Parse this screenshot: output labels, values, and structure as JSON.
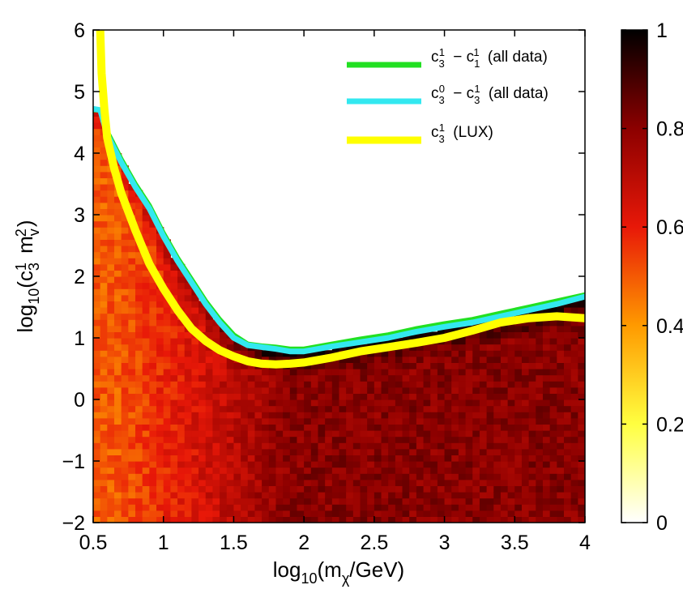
{
  "chart_data": {
    "type": "heatmap",
    "xlabel": "log10(mχ/GeV)",
    "ylabel": "log10(c31 mv2)",
    "xlim": [
      0.5,
      4
    ],
    "ylim": [
      -2,
      6
    ],
    "x_ticks": [
      "0.5",
      "1",
      "1.5",
      "2",
      "2.5",
      "3",
      "3.5",
      "4"
    ],
    "y_ticks": [
      "−2",
      "−1",
      "0",
      "1",
      "2",
      "3",
      "4",
      "5",
      "6"
    ],
    "colorbar": {
      "range": [
        0,
        1
      ],
      "ticks": [
        "0",
        "0.2",
        "0.4",
        "0.6",
        "0.8",
        "1"
      ],
      "colors": [
        "#ffffff",
        "#ffff40",
        "#ff9a00",
        "#e81808",
        "#8c0000",
        "#000000"
      ]
    },
    "series": [
      {
        "name": "c31 − c11 (all data)",
        "color": "#22e022",
        "x": [
          0.5,
          0.55,
          0.6,
          0.7,
          0.8,
          0.9,
          1.0,
          1.1,
          1.2,
          1.3,
          1.4,
          1.5,
          1.6,
          1.7,
          1.8,
          1.9,
          2.0,
          2.2,
          2.4,
          2.6,
          2.8,
          3.0,
          3.2,
          3.4,
          3.6,
          3.8,
          4.0
        ],
        "y": [
          4.7,
          4.7,
          4.35,
          3.9,
          3.5,
          3.15,
          2.7,
          2.3,
          1.95,
          1.6,
          1.3,
          1.05,
          0.9,
          0.87,
          0.85,
          0.82,
          0.82,
          0.9,
          0.98,
          1.05,
          1.15,
          1.23,
          1.3,
          1.4,
          1.5,
          1.6,
          1.7
        ]
      },
      {
        "name": "c30 − c31 (all data)",
        "color": "#33e8f0",
        "x": [
          0.5,
          0.55,
          0.6,
          0.7,
          0.8,
          0.9,
          1.0,
          1.1,
          1.2,
          1.3,
          1.4,
          1.5,
          1.6,
          1.7,
          1.8,
          1.9,
          2.0,
          2.2,
          2.4,
          2.6,
          2.8,
          3.0,
          3.2,
          3.4,
          3.6,
          3.8,
          4.0
        ],
        "y": [
          4.72,
          4.7,
          4.3,
          3.85,
          3.45,
          3.1,
          2.65,
          2.25,
          1.9,
          1.55,
          1.25,
          1.0,
          0.88,
          0.85,
          0.82,
          0.78,
          0.78,
          0.86,
          0.93,
          1.0,
          1.1,
          1.18,
          1.25,
          1.35,
          1.45,
          1.55,
          1.67
        ]
      },
      {
        "name": "c31 (LUX)",
        "color": "#ffff00",
        "x": [
          0.55,
          0.56,
          0.58,
          0.6,
          0.65,
          0.7,
          0.8,
          0.9,
          1.0,
          1.1,
          1.2,
          1.3,
          1.4,
          1.5,
          1.6,
          1.7,
          1.8,
          1.9,
          2.0,
          2.2,
          2.4,
          2.6,
          2.8,
          3.0,
          3.2,
          3.4,
          3.6,
          3.8,
          4.0
        ],
        "y": [
          6.0,
          5.3,
          4.7,
          4.25,
          3.75,
          3.35,
          2.75,
          2.2,
          1.8,
          1.45,
          1.15,
          0.95,
          0.8,
          0.7,
          0.62,
          0.58,
          0.57,
          0.58,
          0.6,
          0.68,
          0.78,
          0.85,
          0.92,
          1.0,
          1.12,
          1.25,
          1.32,
          1.35,
          1.32
        ]
      }
    ]
  }
}
